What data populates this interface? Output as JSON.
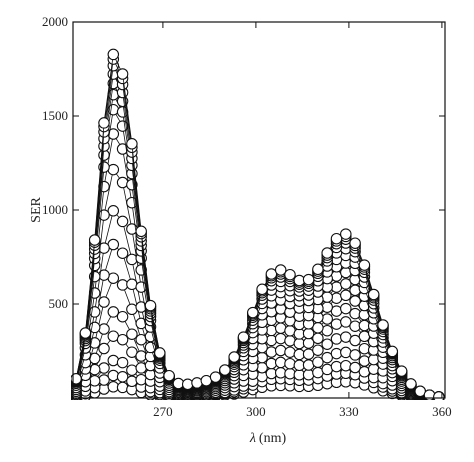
{
  "chart_data": {
    "type": "scatter",
    "title": "",
    "xlabel": "λ (nm)",
    "xlabel_symbol": "λ",
    "xlabel_unit": "(nm)",
    "ylabel": "SER",
    "xlim": [
      241,
      361
    ],
    "ylim": [
      0,
      2000
    ],
    "xticks": [
      270,
      300,
      330,
      360
    ],
    "xtick_labels": [
      "270",
      "300",
      "330",
      "360"
    ],
    "yticks": [
      500,
      1000,
      1500,
      2000
    ],
    "ytick_labels": [
      "500",
      "1000",
      "1500",
      "2000"
    ],
    "grid": false,
    "legend": "none",
    "marker": "open-circle",
    "x": [
      242,
      245,
      248,
      251,
      254,
      257,
      260,
      263,
      266,
      269,
      272,
      275,
      278,
      281,
      284,
      287,
      290,
      293,
      296,
      299,
      302,
      305,
      308,
      311,
      314,
      317,
      320,
      323,
      326,
      329,
      332,
      335,
      338,
      341,
      344,
      347,
      350,
      353,
      356,
      359
    ],
    "series_shape": {
      "peak1_center_nm": 254.5,
      "peak2_center_nm": 329,
      "shoulder_nm": 306
    },
    "series": [
      {
        "peak1": 60,
        "peak2": 85
      },
      {
        "peak1": 120,
        "peak2": 130
      },
      {
        "peak1": 200,
        "peak2": 170
      },
      {
        "peak1": 330,
        "peak2": 240
      },
      {
        "peak1": 460,
        "peak2": 320
      },
      {
        "peak1": 640,
        "peak2": 400
      },
      {
        "peak1": 820,
        "peak2": 470
      },
      {
        "peak1": 1000,
        "peak2": 540
      },
      {
        "peak1": 1220,
        "peak2": 600
      },
      {
        "peak1": 1410,
        "peak2": 660
      },
      {
        "peak1": 1540,
        "peak2": 710
      },
      {
        "peak1": 1620,
        "peak2": 750
      },
      {
        "peak1": 1680,
        "peak2": 785
      },
      {
        "peak1": 1730,
        "peak2": 815
      },
      {
        "peak1": 1775,
        "peak2": 835
      },
      {
        "peak1": 1810,
        "peak2": 850
      },
      {
        "peak1": 1835,
        "peak2": 862
      }
    ]
  }
}
